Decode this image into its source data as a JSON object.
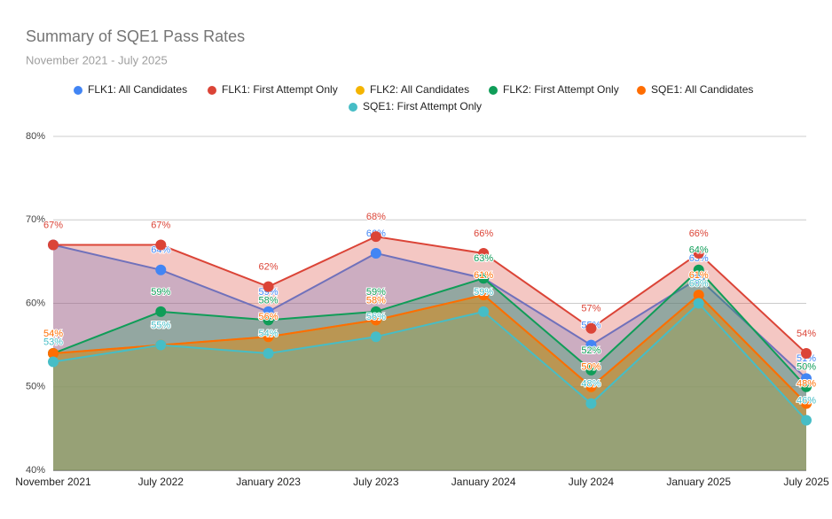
{
  "chart_data": {
    "type": "area",
    "title": "Summary of SQE1 Pass Rates",
    "subtitle": "November 2021 - July 2025",
    "categories": [
      "November 2021",
      "July 2022",
      "January 2023",
      "July 2023",
      "January 2024",
      "July 2024",
      "January 2025",
      "July 2025"
    ],
    "ylim": [
      40,
      80
    ],
    "yticks": [
      {
        "value": 40,
        "label": "40%"
      },
      {
        "value": 50,
        "label": "50%"
      },
      {
        "value": 60,
        "label": "60%"
      },
      {
        "value": 70,
        "label": "70%"
      },
      {
        "value": 80,
        "label": "80%"
      }
    ],
    "grid": true,
    "series": [
      {
        "name": "FLK1: All Candidates",
        "color": "#4285f4",
        "values": [
          67,
          64,
          59,
          66,
          63,
          55,
          63,
          51
        ],
        "value_labels": [
          "67%",
          "64%",
          "59%",
          "66%",
          "63%",
          "55%",
          "63%",
          "51%"
        ]
      },
      {
        "name": "FLK1: First Attempt Only",
        "color": "#db4437",
        "values": [
          67,
          67,
          62,
          68,
          66,
          57,
          66,
          54
        ],
        "value_labels": [
          "67%",
          "67%",
          "62%",
          "68%",
          "66%",
          "57%",
          "66%",
          "54%"
        ]
      },
      {
        "name": "FLK2: All Candidates",
        "color": "#f4b400",
        "values": [
          54,
          55,
          56,
          58,
          61,
          50,
          61,
          48
        ],
        "value_labels": [
          "54%",
          "55%",
          "56%",
          "58%",
          "61%",
          "50%",
          "61%",
          "48%"
        ]
      },
      {
        "name": "FLK2: First Attempt Only",
        "color": "#0f9d58",
        "values": [
          54,
          59,
          58,
          59,
          63,
          52,
          64,
          50
        ],
        "value_labels": [
          "54%",
          "59%",
          "58%",
          "59%",
          "63%",
          "52%",
          "64%",
          "50%"
        ]
      },
      {
        "name": "SQE1: All Candidates",
        "color": "#ff6d01",
        "values": [
          54,
          55,
          56,
          58,
          61,
          50,
          61,
          48
        ],
        "value_labels": [
          "54%",
          "55%",
          "56%",
          "58%",
          "61%",
          "50%",
          "61%",
          "48%"
        ]
      },
      {
        "name": "SQE1: First Attempt Only",
        "color": "#46bdc6",
        "values": [
          53,
          55,
          54,
          56,
          59,
          48,
          60,
          46
        ],
        "value_labels": [
          "53%",
          "55%",
          "54%",
          "56%",
          "59%",
          "48%",
          "60%",
          "46%"
        ]
      }
    ]
  }
}
